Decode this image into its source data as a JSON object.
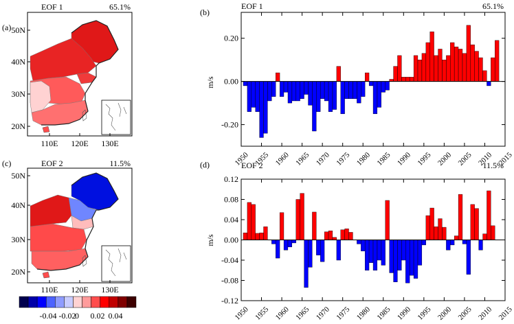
{
  "panels": {
    "a": {
      "label": "(a)",
      "title": "EOF 1",
      "pct": "65.1%"
    },
    "c": {
      "label": "(c)",
      "title": "EOF 2",
      "pct": "11.5%"
    },
    "b": {
      "label": "(b)",
      "title": "EOF 1",
      "pct": "65.1%"
    },
    "d": {
      "label": "(d)",
      "title": "EOF 2",
      "pct": "11.5%"
    }
  },
  "map_axes": {
    "lat_labels": [
      "50N",
      "40N",
      "30N",
      "20N"
    ],
    "lon_labels": [
      "110E",
      "120E",
      "130E"
    ]
  },
  "colorbar": {
    "labels": [
      "-0.04",
      "-0.02",
      "0",
      "0.02",
      "0.04"
    ],
    "colors": [
      "#00004d",
      "#0000a8",
      "#0000ff",
      "#4d63ff",
      "#8f9cff",
      "#c8ccff",
      "#ffd2d2",
      "#ff9b9b",
      "#ff4d4d",
      "#ff0000",
      "#c00000",
      "#800000",
      "#3d0000"
    ]
  },
  "colors": {
    "positive": "#ff0000",
    "negative": "#0000ff"
  },
  "chart_data": [
    {
      "type": "bar",
      "panel": "b",
      "title": "EOF 1",
      "subtitle": "65.1%",
      "ylabel": "m/s",
      "xlabel": "",
      "xlim": [
        1950,
        2015
      ],
      "ylim": [
        -0.3,
        0.32
      ],
      "yticks": [
        -0.2,
        0.0,
        0.2
      ],
      "ytick_labels": [
        "-0.20",
        "0.00",
        "0.20"
      ],
      "xticks": [
        1950,
        1955,
        1960,
        1965,
        1970,
        1975,
        1980,
        1985,
        1990,
        1995,
        2000,
        2005,
        2010,
        2015
      ],
      "xtick_labels": [
        "1950",
        "1955",
        "1960",
        "1965",
        "1970",
        "1975",
        "1980",
        "1985",
        "1990",
        "1995",
        "2000",
        "2005",
        "2010",
        "2015"
      ],
      "x": [
        1951,
        1952,
        1953,
        1954,
        1955,
        1956,
        1957,
        1958,
        1959,
        1960,
        1961,
        1962,
        1963,
        1964,
        1965,
        1966,
        1967,
        1968,
        1969,
        1970,
        1971,
        1972,
        1973,
        1974,
        1975,
        1976,
        1977,
        1978,
        1979,
        1980,
        1981,
        1982,
        1983,
        1984,
        1985,
        1986,
        1987,
        1988,
        1989,
        1990,
        1991,
        1992,
        1993,
        1994,
        1995,
        1996,
        1997,
        1998,
        1999,
        2000,
        2001,
        2002,
        2003,
        2004,
        2005,
        2006,
        2007,
        2008,
        2009,
        2010,
        2011,
        2012,
        2013
      ],
      "values": [
        -0.02,
        -0.14,
        -0.12,
        -0.14,
        -0.26,
        -0.24,
        -0.09,
        -0.07,
        0.04,
        -0.07,
        -0.05,
        -0.1,
        -0.09,
        -0.09,
        -0.08,
        -0.06,
        -0.11,
        -0.23,
        -0.14,
        -0.08,
        -0.09,
        -0.14,
        -0.13,
        0.07,
        -0.15,
        -0.08,
        -0.08,
        -0.08,
        -0.1,
        -0.07,
        0.04,
        -0.02,
        -0.15,
        -0.12,
        -0.05,
        -0.04,
        0.01,
        0.07,
        0.12,
        0.02,
        0.02,
        0.02,
        0.12,
        0.1,
        0.13,
        0.18,
        0.23,
        0.12,
        0.15,
        0.1,
        0.12,
        0.18,
        0.16,
        0.15,
        0.13,
        0.26,
        0.17,
        0.14,
        0.11,
        0.05,
        -0.02,
        0.11,
        0.19
      ]
    },
    {
      "type": "bar",
      "panel": "d",
      "title": "EOF 2",
      "subtitle": "11.5%",
      "ylabel": "m/s",
      "xlabel": "",
      "xlim": [
        1950,
        2015
      ],
      "ylim": [
        -0.12,
        0.12
      ],
      "yticks": [
        -0.12,
        -0.08,
        -0.04,
        0.0,
        0.04,
        0.08,
        0.12
      ],
      "ytick_labels": [
        "-0.12",
        "-0.08",
        "-0.04",
        "0.00",
        "0.04",
        "0.08",
        "0.12"
      ],
      "xticks": [
        1950,
        1955,
        1960,
        1965,
        1970,
        1975,
        1980,
        1985,
        1990,
        1995,
        2000,
        2005,
        2010,
        2015
      ],
      "xtick_labels": [
        "1950",
        "1955",
        "1960",
        "1965",
        "1970",
        "1975",
        "1980",
        "1985",
        "1990",
        "1995",
        "2000",
        "2005",
        "2010",
        "2015"
      ],
      "x": [
        1951,
        1952,
        1953,
        1954,
        1955,
        1956,
        1957,
        1958,
        1959,
        1960,
        1961,
        1962,
        1963,
        1964,
        1965,
        1966,
        1967,
        1968,
        1969,
        1970,
        1971,
        1972,
        1973,
        1974,
        1975,
        1976,
        1977,
        1978,
        1979,
        1980,
        1981,
        1982,
        1983,
        1984,
        1985,
        1986,
        1987,
        1988,
        1989,
        1990,
        1991,
        1992,
        1993,
        1994,
        1995,
        1996,
        1997,
        1998,
        1999,
        2000,
        2001,
        2002,
        2003,
        2004,
        2005,
        2006,
        2007,
        2008,
        2009,
        2010,
        2011,
        2012,
        2013
      ],
      "values": [
        0.014,
        0.074,
        0.07,
        0.013,
        0.014,
        0.026,
        0.0,
        -0.008,
        -0.036,
        0.054,
        -0.02,
        -0.014,
        -0.006,
        0.08,
        0.092,
        -0.094,
        -0.054,
        0.055,
        -0.03,
        -0.043,
        0.016,
        0.018,
        0.005,
        -0.04,
        0.02,
        0.022,
        0.015,
        0.0,
        -0.008,
        -0.022,
        -0.06,
        -0.045,
        -0.06,
        -0.04,
        -0.05,
        0.078,
        -0.065,
        -0.083,
        -0.06,
        -0.04,
        -0.085,
        -0.07,
        -0.076,
        -0.05,
        -0.01,
        0.048,
        0.063,
        0.026,
        0.042,
        0.025,
        -0.02,
        -0.01,
        0.008,
        0.09,
        -0.008,
        -0.068,
        0.07,
        0.062,
        -0.02,
        0.012,
        0.097,
        0.028,
        0.0
      ]
    }
  ]
}
